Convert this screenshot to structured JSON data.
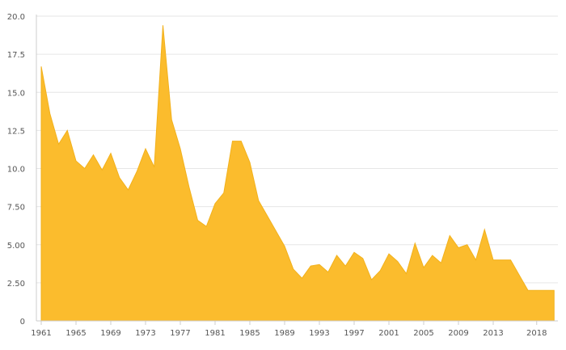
{
  "chart_data": {
    "type": "area",
    "title": "",
    "xlabel": "",
    "ylabel": "",
    "ylim": [
      0,
      20
    ],
    "xlim": [
      1961,
      2020
    ],
    "grid": true,
    "legend": "none",
    "color": "#fbbc2d",
    "y_ticks": [
      "0",
      "2.50",
      "5.00",
      "7.50",
      "10.0",
      "12.5",
      "15.0",
      "17.5",
      "20.0"
    ],
    "y_tick_values": [
      0,
      2.5,
      5,
      7.5,
      10,
      12.5,
      15,
      17.5,
      20
    ],
    "x_ticks": [
      "1961",
      "1965",
      "1969",
      "1973",
      "1977",
      "1981",
      "1985",
      "1989",
      "1993",
      "1997",
      "2001",
      "2005",
      "2009",
      "2013",
      "2018"
    ],
    "x_tick_values": [
      1961,
      1965,
      1969,
      1973,
      1977,
      1981,
      1985,
      1989,
      1993,
      1997,
      2001,
      2005,
      2009,
      2013,
      2018
    ],
    "series": [
      {
        "x": [
          1961,
          1962,
          1963,
          1964,
          1965,
          1966,
          1967,
          1968,
          1969,
          1970,
          1971,
          1972,
          1973,
          1974,
          1975,
          1976,
          1977,
          1978,
          1979,
          1980,
          1981,
          1982,
          1983,
          1984,
          1985,
          1986,
          1987,
          1988,
          1989,
          1990,
          1991,
          1992,
          1993,
          1994,
          1995,
          1996,
          1997,
          1998,
          1999,
          2000,
          2001,
          2002,
          2003,
          2004,
          2005,
          2006,
          2007,
          2008,
          2009,
          2010,
          2011,
          2012,
          2013,
          2014,
          2015,
          2016,
          2017,
          2018,
          2019,
          2020
        ],
        "values": [
          16.7,
          13.6,
          11.6,
          12.5,
          10.5,
          10.0,
          10.9,
          9.9,
          11.0,
          9.4,
          8.6,
          9.8,
          11.3,
          10.1,
          19.4,
          13.2,
          11.3,
          8.8,
          6.6,
          6.2,
          7.7,
          8.4,
          11.8,
          11.8,
          10.4,
          7.9,
          6.9,
          5.9,
          4.9,
          3.4,
          2.8,
          3.6,
          3.7,
          3.2,
          4.3,
          3.6,
          4.5,
          4.1,
          2.7,
          3.3,
          4.4,
          3.9,
          3.1,
          5.1,
          3.5,
          4.3,
          3.8,
          5.6,
          4.8,
          5.0,
          4.0,
          6.0,
          4.0,
          4.0,
          4.0,
          3.0,
          2.0,
          2.0,
          2.0,
          2.0
        ]
      }
    ]
  }
}
